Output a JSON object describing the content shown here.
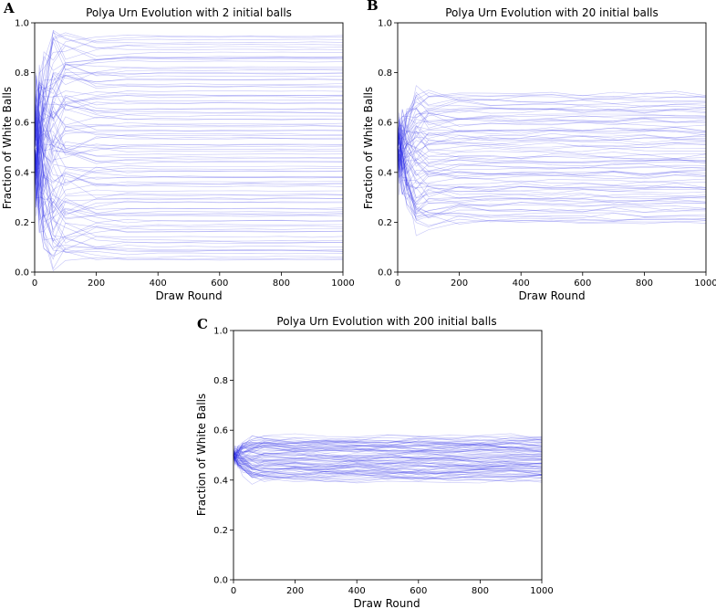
{
  "figure": {
    "series_color": "#2a2ae6",
    "frame_color": "#000000"
  },
  "chart_data": [
    {
      "type": "line",
      "panel": "A",
      "title": "Polya Urn Evolution with  2 initial balls",
      "xlabel": "Draw Round",
      "ylabel": "Fraction of White Balls",
      "xlim": [
        0,
        1000
      ],
      "ylim": [
        0.0,
        1.0
      ],
      "xticks": [
        0,
        200,
        400,
        600,
        800,
        1000
      ],
      "yticks": [
        0.0,
        0.2,
        0.4,
        0.6,
        0.8,
        1.0
      ],
      "ytick_labels": [
        "0.0",
        "0.2",
        "0.4",
        "0.6",
        "0.8",
        "1.0"
      ],
      "x": [
        0,
        5,
        15,
        30,
        60,
        100,
        200,
        300,
        400,
        500,
        600,
        700,
        800,
        900,
        1000
      ],
      "series_start": 0.5,
      "n_series": 100,
      "final_fraction_min": 0.04,
      "final_fraction_max": 0.95,
      "typical_spread_at_start": 0.45,
      "typical_spread_after_settling": 0.005
    },
    {
      "type": "line",
      "panel": "B",
      "title": "Polya Urn Evolution with  20 initial balls",
      "xlabel": "Draw Round",
      "ylabel": "Fraction of White Balls",
      "xlim": [
        0,
        1000
      ],
      "ylim": [
        0.0,
        1.0
      ],
      "xticks": [
        0,
        200,
        400,
        600,
        800,
        1000
      ],
      "yticks": [
        0.0,
        0.2,
        0.4,
        0.6,
        0.8,
        1.0
      ],
      "ytick_labels": [
        "0.0",
        "0.2",
        "0.4",
        "0.6",
        "0.8",
        "1.0"
      ],
      "x": [
        0,
        5,
        15,
        30,
        60,
        100,
        200,
        300,
        400,
        500,
        600,
        700,
        800,
        900,
        1000
      ],
      "series_start": 0.5,
      "n_series": 80,
      "final_fraction_min": 0.19,
      "final_fraction_max": 0.72,
      "typical_spread_at_start": 0.25,
      "typical_spread_after_settling": 0.02
    },
    {
      "type": "line",
      "panel": "C",
      "title": "Polya Urn Evolution with  200 initial balls",
      "xlabel": "Draw Round",
      "ylabel": "Fraction of White Balls",
      "xlim": [
        0,
        1000
      ],
      "ylim": [
        0.0,
        1.0
      ],
      "xticks": [
        0,
        200,
        400,
        600,
        800,
        1000
      ],
      "yticks": [
        0.0,
        0.2,
        0.4,
        0.6,
        0.8,
        1.0
      ],
      "ytick_labels": [
        "0.0",
        "0.2",
        "0.4",
        "0.6",
        "0.8",
        "1.0"
      ],
      "x": [
        0,
        5,
        15,
        30,
        60,
        100,
        200,
        300,
        400,
        500,
        600,
        700,
        800,
        900,
        1000
      ],
      "series_start": 0.5,
      "n_series": 80,
      "final_fraction_min": 0.4,
      "final_fraction_max": 0.57,
      "typical_spread_at_start": 0.03,
      "typical_spread_after_settling": 0.03
    }
  ]
}
